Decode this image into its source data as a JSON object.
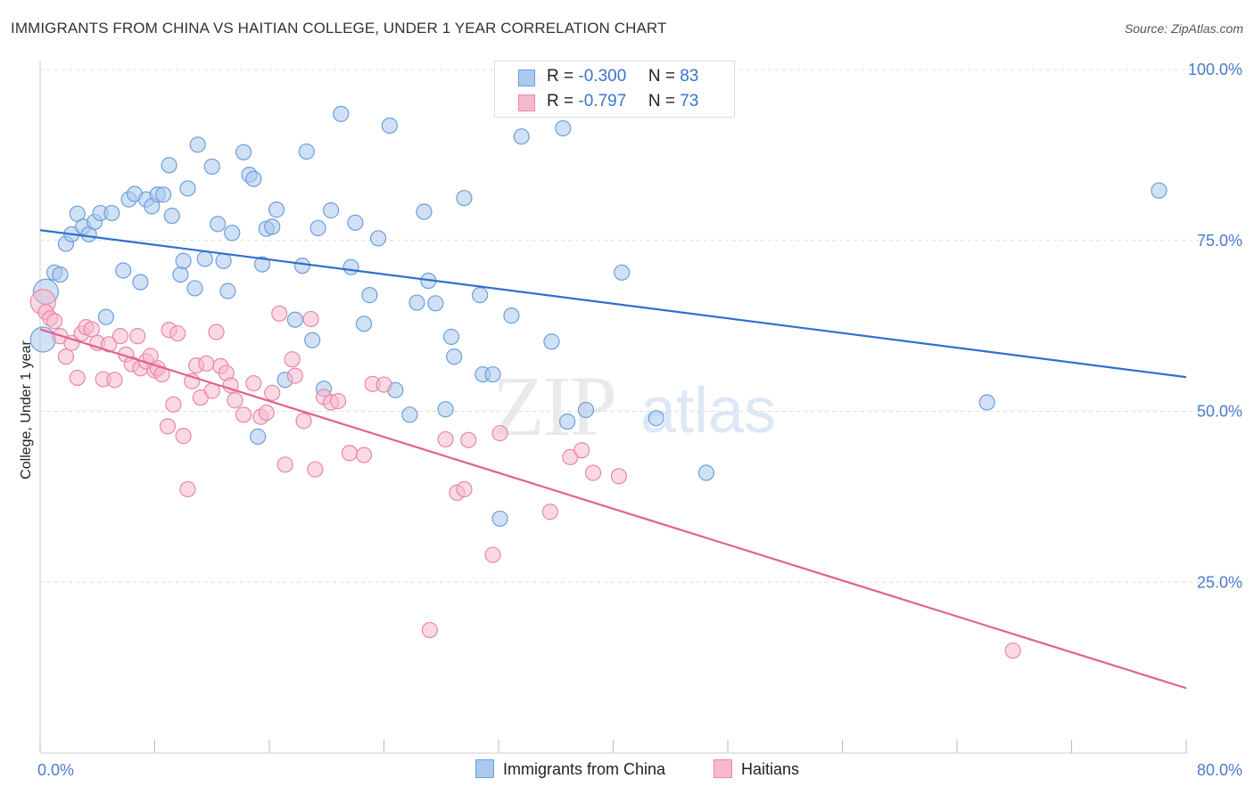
{
  "title": "IMMIGRANTS FROM CHINA VS HAITIAN COLLEGE, UNDER 1 YEAR CORRELATION CHART",
  "source": "Source: ZipAtlas.com",
  "watermark": {
    "zip": "ZIP",
    "atlas": "atlas"
  },
  "legend_top": [
    {
      "r_label": "R =",
      "r_value": "-0.300",
      "n_label": "N =",
      "n_value": "83"
    },
    {
      "r_label": "R =",
      "r_value": "-0.797",
      "n_label": "N =",
      "n_value": "73"
    }
  ],
  "legend_bottom": [
    "Immigrants from China",
    "Haitians"
  ],
  "colors": {
    "china_fill": "#a9c9ef",
    "china_stroke": "#6d9fd8",
    "china_line": "#2f6fcf",
    "haiti_fill": "#f6b9cd",
    "haiti_stroke": "#e987a8",
    "haiti_line": "#e0628f",
    "grid": "#dddddd",
    "tick_label": "#4a7cc9"
  },
  "chart_data": {
    "type": "scatter",
    "title": "IMMIGRANTS FROM CHINA VS HAITIAN COLLEGE, UNDER 1 YEAR CORRELATION CHART",
    "xlabel": "",
    "ylabel": "College, Under 1 year",
    "xlim": [
      0,
      80
    ],
    "ylim": [
      0,
      100
    ],
    "x_tick_labels": [
      "0.0%",
      "80.0%"
    ],
    "y_tick_labels": [
      "25.0%",
      "50.0%",
      "75.0%",
      "100.0%"
    ],
    "y_ticks": [
      25,
      50,
      75,
      100
    ],
    "grid": true,
    "legend_position": "top-center",
    "series": [
      {
        "name": "Immigrants from China",
        "trend": [
          [
            0,
            76.5
          ],
          [
            80,
            55.0
          ]
        ],
        "points": [
          [
            0.2,
            60.5
          ],
          [
            0.4,
            67.5
          ],
          [
            1.0,
            70.3
          ],
          [
            1.4,
            70.0
          ],
          [
            1.8,
            74.5
          ],
          [
            2.2,
            75.9
          ],
          [
            2.6,
            78.9
          ],
          [
            3.0,
            77.0
          ],
          [
            3.4,
            75.9
          ],
          [
            3.8,
            77.7
          ],
          [
            4.2,
            79.0
          ],
          [
            4.6,
            63.8
          ],
          [
            5.0,
            79.0
          ],
          [
            5.8,
            70.6
          ],
          [
            6.2,
            81.0
          ],
          [
            6.6,
            81.8
          ],
          [
            7.0,
            68.9
          ],
          [
            7.4,
            81.0
          ],
          [
            7.8,
            80.0
          ],
          [
            8.2,
            81.7
          ],
          [
            8.6,
            81.7
          ],
          [
            9.0,
            86.0
          ],
          [
            9.2,
            78.6
          ],
          [
            9.8,
            70.0
          ],
          [
            10.0,
            72.0
          ],
          [
            10.3,
            82.6
          ],
          [
            10.8,
            68.0
          ],
          [
            11.0,
            89.0
          ],
          [
            11.5,
            72.3
          ],
          [
            12.0,
            85.8
          ],
          [
            12.4,
            77.4
          ],
          [
            12.8,
            72.0
          ],
          [
            13.1,
            67.6
          ],
          [
            13.4,
            76.1
          ],
          [
            14.2,
            87.9
          ],
          [
            14.6,
            84.6
          ],
          [
            14.9,
            84.0
          ],
          [
            15.2,
            46.3
          ],
          [
            15.5,
            71.5
          ],
          [
            15.8,
            76.7
          ],
          [
            16.2,
            77.0
          ],
          [
            16.5,
            79.5
          ],
          [
            17.1,
            54.6
          ],
          [
            17.8,
            63.4
          ],
          [
            18.3,
            71.3
          ],
          [
            18.6,
            88.0
          ],
          [
            19.0,
            60.4
          ],
          [
            19.4,
            76.8
          ],
          [
            19.8,
            53.3
          ],
          [
            20.3,
            79.4
          ],
          [
            21.0,
            93.5
          ],
          [
            21.7,
            71.1
          ],
          [
            22.0,
            77.6
          ],
          [
            22.6,
            62.8
          ],
          [
            23.0,
            67.0
          ],
          [
            23.6,
            75.3
          ],
          [
            24.4,
            91.8
          ],
          [
            24.8,
            53.1
          ],
          [
            25.8,
            49.5
          ],
          [
            26.3,
            65.9
          ],
          [
            26.8,
            79.2
          ],
          [
            27.1,
            69.1
          ],
          [
            27.6,
            65.8
          ],
          [
            28.3,
            50.3
          ],
          [
            28.7,
            60.9
          ],
          [
            28.9,
            58.0
          ],
          [
            29.6,
            81.2
          ],
          [
            30.7,
            67.0
          ],
          [
            30.9,
            55.4
          ],
          [
            31.6,
            55.4
          ],
          [
            32.1,
            34.3
          ],
          [
            32.9,
            64.0
          ],
          [
            33.6,
            90.2
          ],
          [
            35.7,
            60.2
          ],
          [
            36.5,
            91.4
          ],
          [
            36.8,
            48.5
          ],
          [
            38.1,
            50.2
          ],
          [
            40.6,
            70.3
          ],
          [
            46.5,
            41.0
          ],
          [
            66.1,
            51.3
          ],
          [
            78.1,
            82.3
          ],
          [
            34.6,
            98.2
          ],
          [
            43.0,
            49.0
          ]
        ]
      },
      {
        "name": "Haitians",
        "trend": [
          [
            0,
            62.0
          ],
          [
            80,
            9.5
          ]
        ],
        "points": [
          [
            0.2,
            66.0
          ],
          [
            0.4,
            64.5
          ],
          [
            0.7,
            63.6
          ],
          [
            1.0,
            63.2
          ],
          [
            1.4,
            61.0
          ],
          [
            1.8,
            58.0
          ],
          [
            2.2,
            60.0
          ],
          [
            2.6,
            54.9
          ],
          [
            2.9,
            61.4
          ],
          [
            3.2,
            62.3
          ],
          [
            3.6,
            62.0
          ],
          [
            4.0,
            60.0
          ],
          [
            4.4,
            54.7
          ],
          [
            4.8,
            59.8
          ],
          [
            5.2,
            54.6
          ],
          [
            5.6,
            61.0
          ],
          [
            6.0,
            58.3
          ],
          [
            6.4,
            56.9
          ],
          [
            6.8,
            61.0
          ],
          [
            7.0,
            56.3
          ],
          [
            7.4,
            57.3
          ],
          [
            7.7,
            58.1
          ],
          [
            8.0,
            56.0
          ],
          [
            8.2,
            56.3
          ],
          [
            8.5,
            55.4
          ],
          [
            8.9,
            47.8
          ],
          [
            9.0,
            61.9
          ],
          [
            9.3,
            51.0
          ],
          [
            9.6,
            61.4
          ],
          [
            10.0,
            46.4
          ],
          [
            10.3,
            38.6
          ],
          [
            10.6,
            54.4
          ],
          [
            10.9,
            56.7
          ],
          [
            11.2,
            52.0
          ],
          [
            11.6,
            57.0
          ],
          [
            12.0,
            53.0
          ],
          [
            12.3,
            61.6
          ],
          [
            12.6,
            56.6
          ],
          [
            13.0,
            55.6
          ],
          [
            13.3,
            53.8
          ],
          [
            13.6,
            51.6
          ],
          [
            14.2,
            49.5
          ],
          [
            14.9,
            54.1
          ],
          [
            15.4,
            49.2
          ],
          [
            15.8,
            49.8
          ],
          [
            16.2,
            52.7
          ],
          [
            16.7,
            64.3
          ],
          [
            17.1,
            42.2
          ],
          [
            17.6,
            57.6
          ],
          [
            17.8,
            55.2
          ],
          [
            18.4,
            48.6
          ],
          [
            18.9,
            63.5
          ],
          [
            19.2,
            41.5
          ],
          [
            19.8,
            52.1
          ],
          [
            20.3,
            51.3
          ],
          [
            20.8,
            51.5
          ],
          [
            21.6,
            43.9
          ],
          [
            22.6,
            43.6
          ],
          [
            23.2,
            54.0
          ],
          [
            24.0,
            53.9
          ],
          [
            27.2,
            18.0
          ],
          [
            28.3,
            45.9
          ],
          [
            29.1,
            38.1
          ],
          [
            29.6,
            38.6
          ],
          [
            29.9,
            45.8
          ],
          [
            31.6,
            29.0
          ],
          [
            32.1,
            46.8
          ],
          [
            35.6,
            35.3
          ],
          [
            37.0,
            43.3
          ],
          [
            37.8,
            44.3
          ],
          [
            38.6,
            41.0
          ],
          [
            40.4,
            40.5
          ],
          [
            67.9,
            15.0
          ]
        ]
      }
    ]
  }
}
